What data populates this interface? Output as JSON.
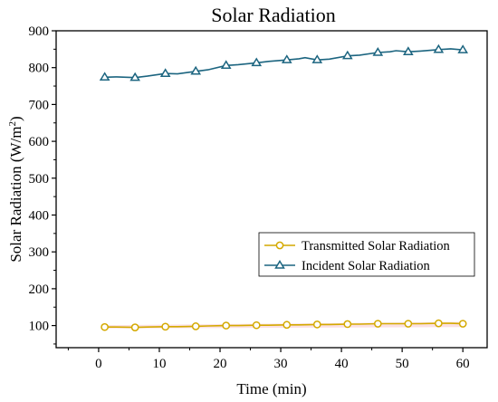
{
  "chart_data": {
    "type": "line",
    "title": "Solar Radiation",
    "xlabel": "Time (min)",
    "ylabel_main": "Solar Radiation (W/m",
    "ylabel_sup": "2",
    "ylabel_close": ")",
    "xlim": [
      -7,
      64
    ],
    "ylim": [
      40,
      900
    ],
    "xticks": [
      0,
      10,
      20,
      30,
      40,
      50,
      60
    ],
    "xtick_labels": [
      "0",
      "10",
      "20",
      "30",
      "40",
      "50",
      "60"
    ],
    "yticks": [
      100,
      200,
      300,
      400,
      500,
      600,
      700,
      800,
      900
    ],
    "ytick_labels": [
      "100",
      "200",
      "300",
      "400",
      "500",
      "600",
      "700",
      "800",
      "900"
    ],
    "legend_position": "center-right",
    "series": [
      {
        "name": "Transmitted Solar Radiation",
        "color": "#d4a900",
        "marker": "circle",
        "x": [
          1,
          3,
          6,
          8,
          11,
          13,
          16,
          18,
          21,
          23,
          26,
          28,
          31,
          33,
          36,
          38,
          41,
          43,
          46,
          48,
          51,
          53,
          56,
          58,
          60
        ],
        "y": [
          96,
          96,
          95,
          96,
          97,
          97,
          98,
          99,
          100,
          100,
          101,
          101,
          102,
          102,
          103,
          103,
          104,
          104,
          105,
          105,
          105,
          105,
          106,
          106,
          105
        ],
        "marker_x": [
          1,
          6,
          11,
          16,
          21,
          26,
          31,
          36,
          41,
          46,
          51,
          56,
          60
        ],
        "marker_y": [
          96,
          95,
          97,
          98,
          100,
          101,
          102,
          103,
          104,
          105,
          105,
          106,
          105
        ]
      },
      {
        "name": "Incident Solar Radiation",
        "color": "#1c6580",
        "marker": "triangle",
        "x": [
          1,
          3,
          6,
          8,
          11,
          13,
          16,
          18,
          21,
          23,
          26,
          28,
          31,
          33,
          34,
          36,
          38,
          41,
          43,
          46,
          48,
          49,
          51,
          53,
          56,
          58,
          60
        ],
        "y": [
          774,
          775,
          773,
          777,
          784,
          783,
          790,
          794,
          806,
          808,
          813,
          817,
          821,
          824,
          827,
          821,
          823,
          832,
          834,
          841,
          843,
          846,
          843,
          845,
          849,
          851,
          848
        ],
        "marker_x": [
          1,
          6,
          11,
          16,
          21,
          26,
          31,
          36,
          41,
          46,
          51,
          56,
          60
        ],
        "marker_y": [
          774,
          773,
          784,
          790,
          806,
          813,
          821,
          821,
          832,
          841,
          843,
          849,
          848
        ]
      }
    ],
    "band": {
      "color": "#f7c6cc",
      "x": [
        1,
        60
      ],
      "low": [
        92,
        96
      ],
      "high": [
        101,
        110
      ]
    }
  }
}
